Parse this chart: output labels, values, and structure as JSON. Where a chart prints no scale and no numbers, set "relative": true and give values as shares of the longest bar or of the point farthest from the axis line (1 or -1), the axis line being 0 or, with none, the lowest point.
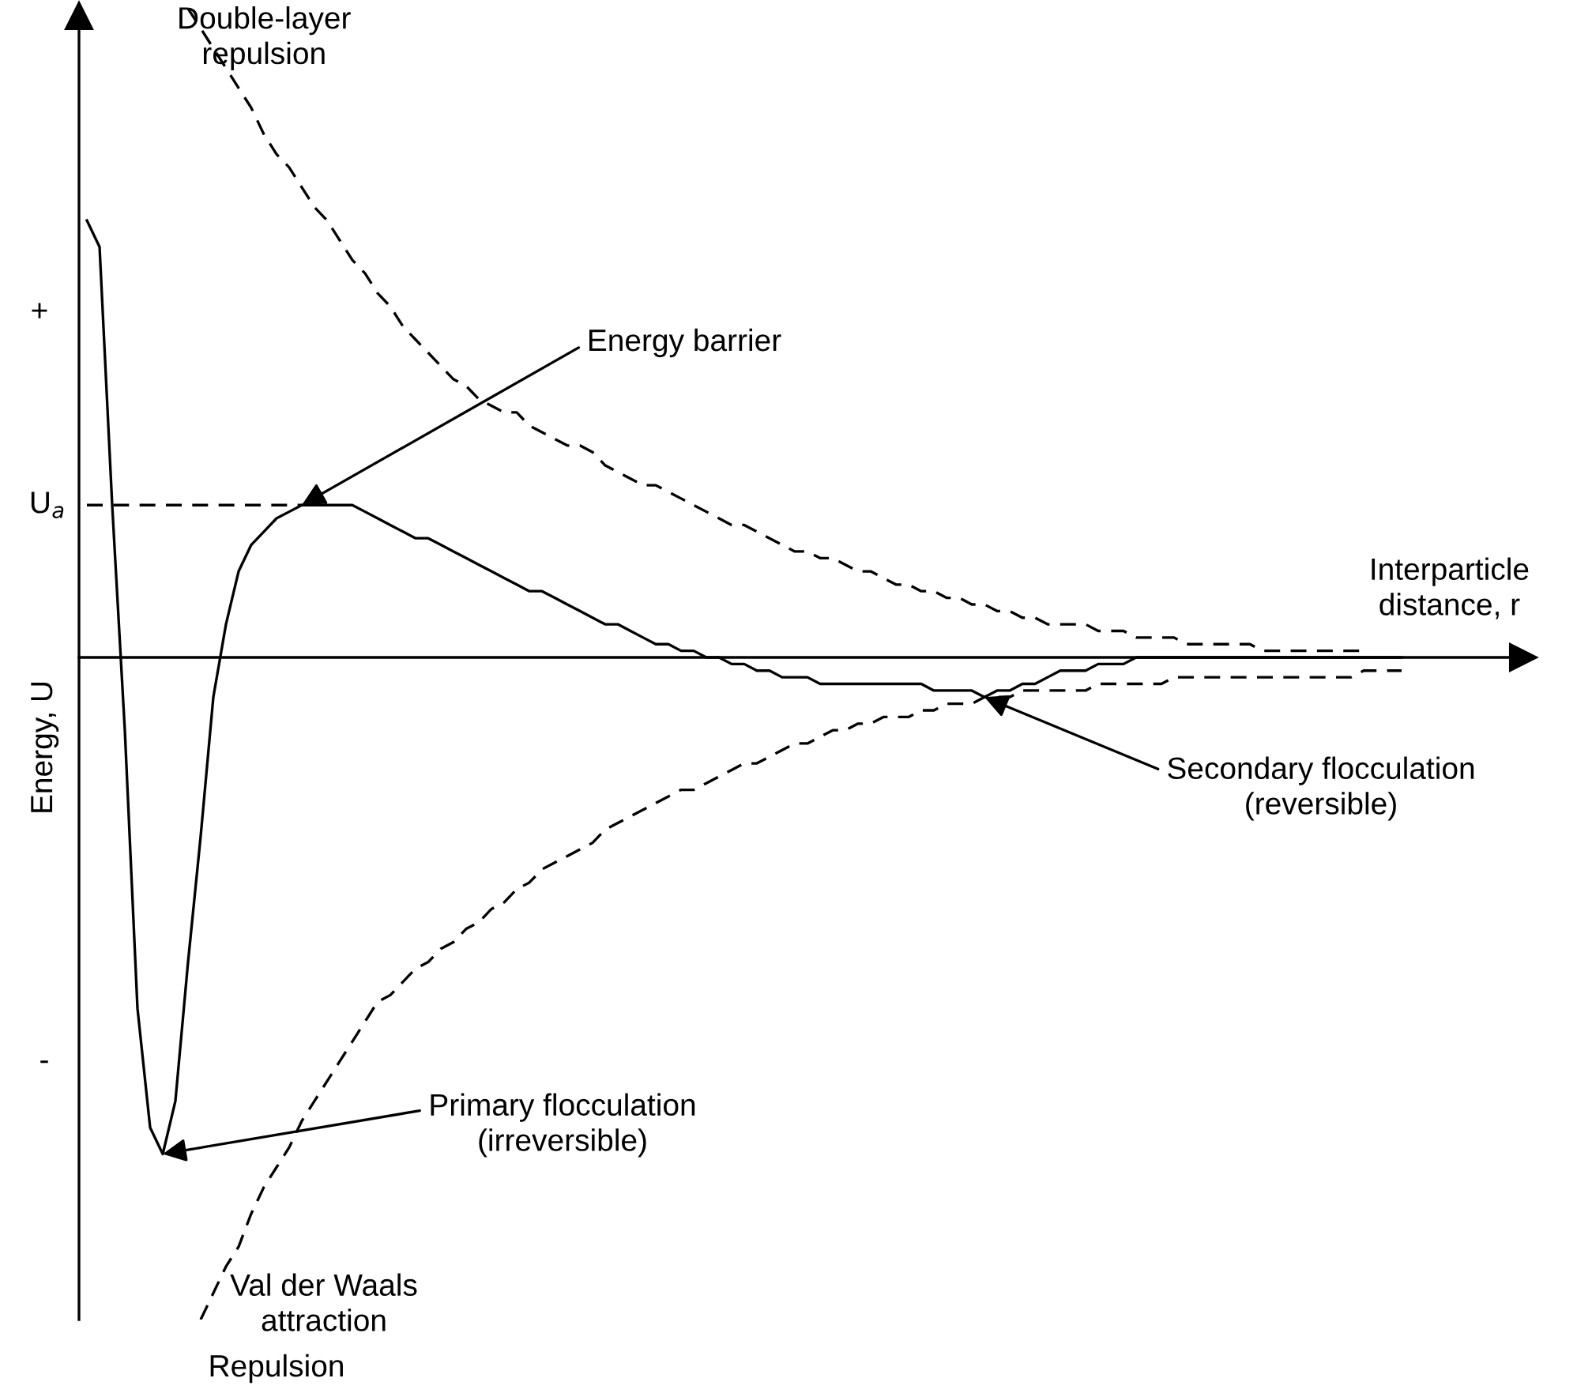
{
  "chart_data": {
    "type": "line",
    "relative": true,
    "xlabel": "Interparticle\ndistance, r",
    "ylabel": "Energy, U",
    "categories": [
      null,
      null,
      null,
      null,
      null,
      null,
      null,
      null,
      null,
      null,
      null,
      null,
      null,
      null,
      null,
      null,
      null,
      null,
      null,
      null,
      null,
      null,
      null,
      null,
      null,
      null,
      null,
      null,
      null,
      null,
      null,
      null,
      null,
      null,
      null,
      null,
      null,
      null,
      null,
      null,
      null,
      null,
      null,
      null,
      null,
      null,
      null,
      null,
      null,
      null,
      null,
      null,
      null,
      null,
      null,
      null,
      null,
      null,
      null,
      null,
      null,
      null,
      null,
      null,
      null,
      null,
      null,
      null,
      null,
      null,
      null,
      null,
      null,
      null,
      null,
      null,
      null,
      null,
      null,
      null,
      null,
      null,
      null,
      null,
      null,
      null,
      null,
      null,
      null,
      null,
      null,
      null,
      null,
      null,
      null,
      null,
      null,
      null,
      null,
      null,
      null,
      null,
      null,
      null,
      null
    ],
    "series": [
      {
        "color": "#000000",
        "line_style": "solid",
        "values": [
          0.66,
          0.62,
          0.23,
          -0.11,
          -0.53,
          -0.71,
          -0.75,
          -0.67,
          -0.46,
          -0.27,
          -0.06,
          0.05,
          0.13,
          0.17,
          0.19,
          0.21,
          0.22,
          0.23,
          0.23,
          0.23,
          0.23,
          0.23,
          0.22,
          0.21,
          0.2,
          0.19,
          0.18,
          0.18,
          0.17,
          0.16,
          0.15,
          0.14,
          0.13,
          0.12,
          0.11,
          0.1,
          0.1,
          0.09,
          0.08,
          0.07,
          0.06,
          0.05,
          0.05,
          0.04,
          0.03,
          0.02,
          0.02,
          0.01,
          0.01,
          0,
          0,
          -0.01,
          -0.01,
          -0.02,
          -0.02,
          -0.03,
          -0.03,
          -0.03,
          -0.04,
          -0.04,
          -0.04,
          -0.04,
          -0.04,
          -0.04,
          -0.04,
          -0.04,
          -0.04,
          -0.05,
          -0.05,
          -0.05,
          -0.05,
          -0.06,
          -0.05,
          -0.05,
          -0.04,
          -0.04,
          -0.03,
          -0.02,
          -0.02,
          -0.02,
          -0.01,
          -0.01,
          -0.01,
          0,
          0,
          0,
          0,
          0,
          0,
          0,
          0,
          0,
          0,
          0,
          0,
          0,
          0,
          0,
          0,
          0,
          0,
          0,
          0,
          0,
          0
        ]
      },
      {
        "name": "Double-layer\nrepulsion",
        "color": "#000000",
        "line_style": "dashed",
        "values": [
          null,
          null,
          null,
          null,
          null,
          null,
          null,
          null,
          0.98,
          0.95,
          0.92,
          0.89,
          0.86,
          0.83,
          0.79,
          0.76,
          0.74,
          0.71,
          0.68,
          0.66,
          0.63,
          0.6,
          0.58,
          0.55,
          0.53,
          0.5,
          0.48,
          0.46,
          0.44,
          0.42,
          0.41,
          0.39,
          0.38,
          0.37,
          0.37,
          0.35,
          0.34,
          0.33,
          0.32,
          0.32,
          0.31,
          0.29,
          0.28,
          0.27,
          0.26,
          0.26,
          0.25,
          0.24,
          0.23,
          0.22,
          0.21,
          0.2,
          0.2,
          0.19,
          0.18,
          0.17,
          0.16,
          0.16,
          0.15,
          0.15,
          0.14,
          0.13,
          0.13,
          0.12,
          0.11,
          0.11,
          0.1,
          0.1,
          0.09,
          0.09,
          0.08,
          0.08,
          0.07,
          0.07,
          0.06,
          0.06,
          0.05,
          0.05,
          0.05,
          0.05,
          0.04,
          0.04,
          0.04,
          0.03,
          0.03,
          0.03,
          0.03,
          0.02,
          0.02,
          0.02,
          0.02,
          0.02,
          0.02,
          0.01,
          0.01,
          0.01,
          0.01,
          0.01,
          0.01,
          0.01,
          0.01,
          0.01,
          null,
          null,
          null
        ]
      },
      {
        "name": "Val der Waals\nattraction",
        "color": "#000000",
        "line_style": "dashed",
        "values": [
          null,
          null,
          null,
          null,
          null,
          null,
          null,
          null,
          null,
          -1.0,
          -0.96,
          -0.92,
          -0.89,
          -0.84,
          -0.8,
          -0.77,
          -0.74,
          -0.7,
          -0.67,
          -0.64,
          -0.61,
          -0.58,
          -0.55,
          -0.52,
          -0.51,
          -0.49,
          -0.47,
          -0.46,
          -0.44,
          -0.43,
          -0.41,
          -0.4,
          -0.38,
          -0.37,
          -0.35,
          -0.34,
          -0.32,
          -0.31,
          -0.3,
          -0.29,
          -0.28,
          -0.26,
          -0.25,
          -0.24,
          -0.23,
          -0.22,
          -0.21,
          -0.2,
          -0.2,
          -0.19,
          -0.18,
          -0.17,
          -0.16,
          -0.16,
          -0.15,
          -0.14,
          -0.13,
          -0.13,
          -0.12,
          -0.11,
          -0.11,
          -0.1,
          -0.1,
          -0.09,
          -0.09,
          -0.09,
          -0.08,
          -0.08,
          -0.07,
          -0.07,
          -0.07,
          -0.06,
          -0.06,
          -0.06,
          -0.05,
          -0.05,
          -0.05,
          -0.05,
          -0.05,
          -0.05,
          -0.04,
          -0.04,
          -0.04,
          -0.04,
          -0.04,
          -0.04,
          -0.03,
          -0.03,
          -0.03,
          -0.03,
          -0.03,
          -0.03,
          -0.03,
          -0.03,
          -0.03,
          -0.03,
          -0.03,
          -0.03,
          -0.03,
          -0.03,
          -0.03,
          -0.02,
          -0.02,
          -0.02,
          -0.02
        ]
      },
      {
        "color": "#000000",
        "line_style": "dashed",
        "values": [
          0.23,
          0.23,
          0.23,
          0.23,
          0.23,
          0.23,
          0.23,
          0.23,
          0.23,
          0.23,
          0.23,
          0.23,
          0.23,
          0.23,
          0.23,
          0.23,
          0.23,
          0.23,
          0.23,
          0.23,
          null,
          null,
          null,
          null,
          null,
          null,
          null,
          null,
          null,
          null,
          null,
          null,
          null,
          null,
          null,
          null,
          null,
          null,
          null,
          null,
          null,
          null,
          null,
          null,
          null,
          null,
          null,
          null,
          null,
          null,
          null,
          null,
          null,
          null,
          null,
          null,
          null,
          null,
          null,
          null,
          null,
          null,
          null,
          null,
          null,
          null,
          null,
          null,
          null,
          null,
          null,
          null,
          null,
          null,
          null,
          null,
          null,
          null,
          null,
          null,
          null,
          null,
          null,
          null,
          null,
          null,
          null,
          null,
          null,
          null,
          null,
          null,
          null,
          null,
          null,
          null,
          null,
          null,
          null,
          null,
          null,
          null,
          null,
          null,
          null
        ]
      }
    ],
    "annotations": [
      "Energy barrier",
      "Primary flocculation\n(irreversible)",
      "Secondary flocculation\n(reversible)",
      "Repulsion",
      "+",
      "U$_{a}$",
      "-"
    ]
  }
}
